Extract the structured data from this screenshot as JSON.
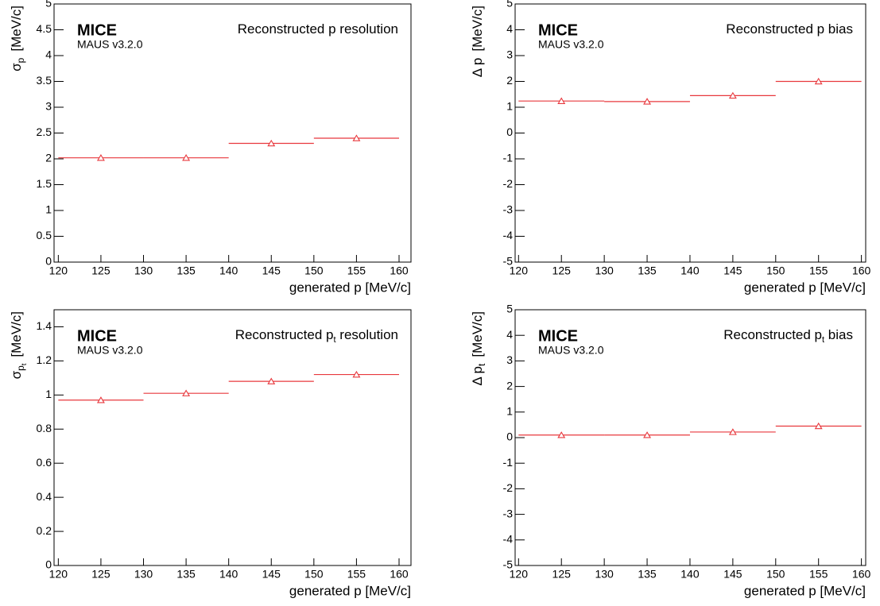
{
  "chart_data": [
    {
      "type": "errorbar",
      "experiment": "MICE",
      "software": "MAUS v3.2.0",
      "title": {
        "text": "Reconstructed p resolution"
      },
      "ylabel": {
        "symbol": "σ",
        "sub": "p",
        "unit": "[MeV/c]"
      },
      "xlabel": "generated p [MeV/c]",
      "x": [
        125,
        135,
        145,
        155
      ],
      "xerr": [
        5,
        5,
        5,
        5
      ],
      "values": [
        2.02,
        2.02,
        2.3,
        2.4
      ],
      "color": "#e8383d",
      "xlim": [
        119.5,
        161.4
      ],
      "xticks": [
        120,
        125,
        130,
        135,
        140,
        145,
        150,
        155,
        160
      ],
      "ylim": [
        0,
        5
      ],
      "yticks": [
        0,
        0.5,
        1,
        1.5,
        2,
        2.5,
        3,
        3.5,
        4,
        4.5,
        5
      ]
    },
    {
      "type": "errorbar",
      "experiment": "MICE",
      "software": "MAUS v3.2.0",
      "title": {
        "text": "Reconstructed p bias"
      },
      "ylabel": {
        "symbol": "Δ p",
        "unit": "[MeV/c]"
      },
      "xlabel": "generated p [MeV/c]",
      "x": [
        125,
        135,
        145,
        155
      ],
      "xerr": [
        5,
        5,
        5,
        5
      ],
      "values": [
        1.24,
        1.22,
        1.45,
        2.0
      ],
      "color": "#e8383d",
      "xlim": [
        119.6,
        160.5
      ],
      "xticks": [
        120,
        125,
        130,
        135,
        140,
        145,
        150,
        155,
        160
      ],
      "ylim": [
        -5,
        5
      ],
      "yticks": [
        -5,
        -4,
        -3,
        -2,
        -1,
        0,
        1,
        2,
        3,
        4,
        5
      ]
    },
    {
      "type": "errorbar",
      "experiment": "MICE",
      "software": "MAUS v3.2.0",
      "title": {
        "text": "Reconstructed p",
        "sub": "t",
        "tail": " resolution"
      },
      "ylabel": {
        "symbol": "σ",
        "sub": "p",
        "subsub": "t",
        "unit": "[MeV/c]"
      },
      "xlabel": "generated p [MeV/c]",
      "x": [
        125,
        135,
        145,
        155
      ],
      "xerr": [
        5,
        5,
        5,
        5
      ],
      "values": [
        0.97,
        1.01,
        1.08,
        1.12
      ],
      "color": "#e8383d",
      "xlim": [
        119.5,
        161.4
      ],
      "xticks": [
        120,
        125,
        130,
        135,
        140,
        145,
        150,
        155,
        160
      ],
      "ylim": [
        0,
        1.5
      ],
      "yticks": [
        0,
        0.2,
        0.4,
        0.6,
        0.8,
        1,
        1.2,
        1.4
      ]
    },
    {
      "type": "errorbar",
      "experiment": "MICE",
      "software": "MAUS v3.2.0",
      "title": {
        "text": "Reconstructed p",
        "sub": "t",
        "tail": " bias"
      },
      "ylabel": {
        "symbol": "Δ p",
        "sub": "t",
        "unit": "[MeV/c]"
      },
      "xlabel": "generated p [MeV/c]",
      "x": [
        125,
        135,
        145,
        155
      ],
      "xerr": [
        5,
        5,
        5,
        5
      ],
      "values": [
        0.1,
        0.1,
        0.22,
        0.45
      ],
      "color": "#e8383d",
      "xlim": [
        119.6,
        160.5
      ],
      "xticks": [
        120,
        125,
        130,
        135,
        140,
        145,
        150,
        155,
        160
      ],
      "ylim": [
        -5,
        5
      ],
      "yticks": [
        -5,
        -4,
        -3,
        -2,
        -1,
        0,
        1,
        2,
        3,
        4,
        5
      ]
    }
  ]
}
